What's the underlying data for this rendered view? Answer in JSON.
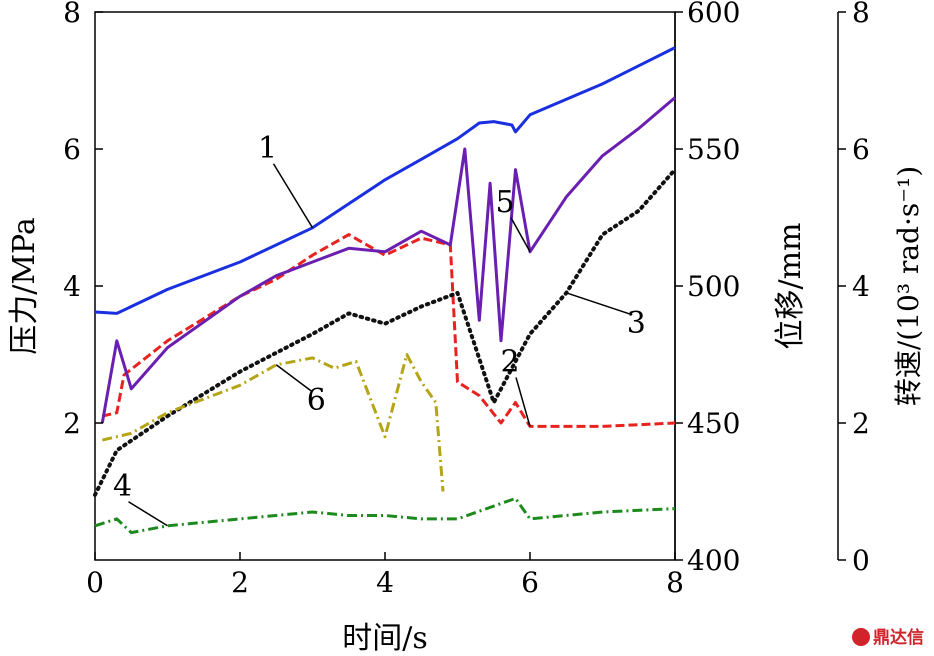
{
  "chart_data": {
    "type": "line",
    "xlabel": "时间/s",
    "ylabel_left": "压力/MPa",
    "ylabel_mid": "位移/mm",
    "ylabel_right": "转速/(10³ rad·s⁻¹)",
    "xlim": [
      0,
      8
    ],
    "ylim_left": [
      0,
      8
    ],
    "ylim_mid": [
      400,
      600
    ],
    "ylim_right": [
      0,
      8
    ],
    "x_ticks": [
      "0",
      "2",
      "4",
      "6",
      "8"
    ],
    "y_left_ticks": [
      "2",
      "4",
      "6",
      "8"
    ],
    "y_mid_ticks": [
      "400",
      "450",
      "500",
      "550",
      "600"
    ],
    "y_right_ticks": [
      "0",
      "2",
      "4",
      "6",
      "8"
    ],
    "grid": false,
    "series": [
      {
        "name": "1",
        "color": "#1a2fe0",
        "style": "solid",
        "axis": "left",
        "x": [
          0,
          0.3,
          1,
          2,
          3,
          3.5,
          4,
          4.5,
          5,
          5.3,
          5.5,
          5.75,
          5.8,
          6,
          7,
          8
        ],
        "y": [
          3.62,
          3.6,
          3.95,
          4.35,
          4.85,
          5.2,
          5.55,
          5.85,
          6.15,
          6.38,
          6.4,
          6.35,
          6.25,
          6.5,
          6.95,
          7.48
        ]
      },
      {
        "name": "2",
        "color": "#e8221e",
        "style": "dashed",
        "axis": "left",
        "x": [
          0.1,
          0.3,
          0.4,
          1,
          2,
          2.5,
          3,
          3.5,
          4,
          4.5,
          4.9,
          5,
          5.3,
          5.6,
          5.8,
          6,
          7,
          8
        ],
        "y": [
          2.1,
          2.15,
          2.7,
          3.2,
          3.85,
          4.1,
          4.45,
          4.75,
          4.45,
          4.7,
          4.6,
          2.6,
          2.4,
          2.0,
          2.3,
          1.95,
          1.95,
          2.0
        ]
      },
      {
        "name": "3",
        "color": "#111111",
        "style": "dotted",
        "axis": "left",
        "x": [
          0,
          0.3,
          1,
          2,
          3,
          3.5,
          4,
          4.5,
          5,
          5.5,
          6,
          6.5,
          7,
          7.5,
          8
        ],
        "y": [
          0.95,
          1.6,
          2.1,
          2.75,
          3.3,
          3.6,
          3.45,
          3.7,
          3.9,
          2.3,
          3.3,
          3.9,
          4.75,
          5.1,
          5.7
        ]
      },
      {
        "name": "4",
        "color": "#1e8a1e",
        "style": "dashdot",
        "axis": "right",
        "x": [
          0,
          0.3,
          0.5,
          1,
          2,
          3,
          3.5,
          4,
          4.5,
          4.8,
          5,
          5.8,
          6,
          7,
          8
        ],
        "y": [
          0.5,
          0.6,
          0.4,
          0.5,
          0.6,
          0.7,
          0.65,
          0.65,
          0.6,
          0.6,
          0.6,
          0.9,
          0.6,
          0.7,
          0.75
        ]
      },
      {
        "name": "5",
        "color": "#6a1fb0",
        "style": "solid",
        "axis": "left",
        "x": [
          0.1,
          0.3,
          0.5,
          1,
          2,
          2.5,
          3,
          3.5,
          4,
          4.5,
          4.9,
          5.1,
          5.3,
          5.45,
          5.6,
          5.8,
          6,
          6.5,
          7,
          7.5,
          8
        ],
        "y": [
          2.0,
          3.2,
          2.5,
          3.1,
          3.85,
          4.15,
          4.35,
          4.55,
          4.5,
          4.8,
          4.6,
          6.0,
          3.5,
          5.5,
          3.2,
          5.7,
          4.5,
          5.3,
          5.9,
          6.3,
          6.75
        ]
      },
      {
        "name": "6",
        "color": "#b5a516",
        "style": "dashdot",
        "axis": "left",
        "x": [
          0.1,
          0.5,
          1,
          2,
          2.5,
          3,
          3.3,
          3.6,
          4,
          4.3,
          4.5,
          4.7,
          4.8
        ],
        "y": [
          1.75,
          1.85,
          2.15,
          2.55,
          2.85,
          2.95,
          2.8,
          2.9,
          1.8,
          3.0,
          2.6,
          2.3,
          1.0
        ]
      }
    ],
    "annotations": [
      {
        "text": "1",
        "series": "1"
      },
      {
        "text": "2",
        "series": "2"
      },
      {
        "text": "3",
        "series": "3"
      },
      {
        "text": "4",
        "series": "4"
      },
      {
        "text": "5",
        "series": "5"
      },
      {
        "text": "6",
        "series": "6"
      }
    ]
  },
  "watermark": "鼎达信"
}
